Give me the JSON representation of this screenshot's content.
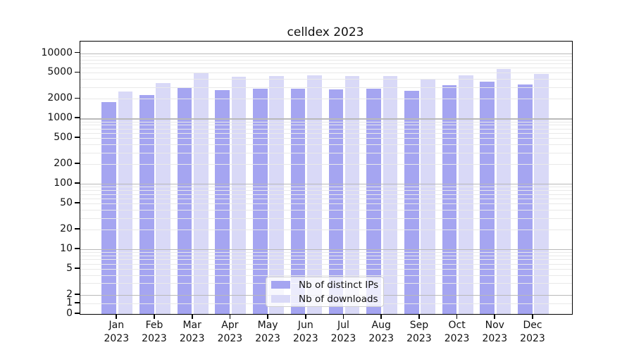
{
  "title": "celldex 2023",
  "chart_data": {
    "type": "bar",
    "title": "celldex 2023",
    "xlabel": "",
    "ylabel": "",
    "yscale": "log",
    "grid": true,
    "legend_position": "bottom-center",
    "year": "2023",
    "categories": [
      "Jan",
      "Feb",
      "Mar",
      "Apr",
      "May",
      "Jun",
      "Jul",
      "Aug",
      "Sep",
      "Oct",
      "Nov",
      "Dec"
    ],
    "yticks": [
      10000,
      5000,
      2000,
      1000,
      500,
      200,
      100,
      50,
      20,
      10,
      5,
      2,
      1,
      0
    ],
    "ylim": [
      0,
      15000
    ],
    "series": [
      {
        "name": "Nb of distinct IPs",
        "color": "#a5a5f1",
        "values": [
          1790,
          2290,
          3030,
          2740,
          2860,
          2860,
          2790,
          2880,
          2670,
          3210,
          3630,
          3290
        ]
      },
      {
        "name": "Nb of downloads",
        "color": "#d9d9f7",
        "values": [
          2620,
          3510,
          4930,
          4320,
          4470,
          4580,
          4500,
          4470,
          3970,
          4580,
          5760,
          4810
        ]
      }
    ],
    "colors": {
      "grid_minor": "#e9e9e9",
      "grid_major": "#b9b9b9",
      "axis": "#000000",
      "text": "#111111"
    }
  }
}
